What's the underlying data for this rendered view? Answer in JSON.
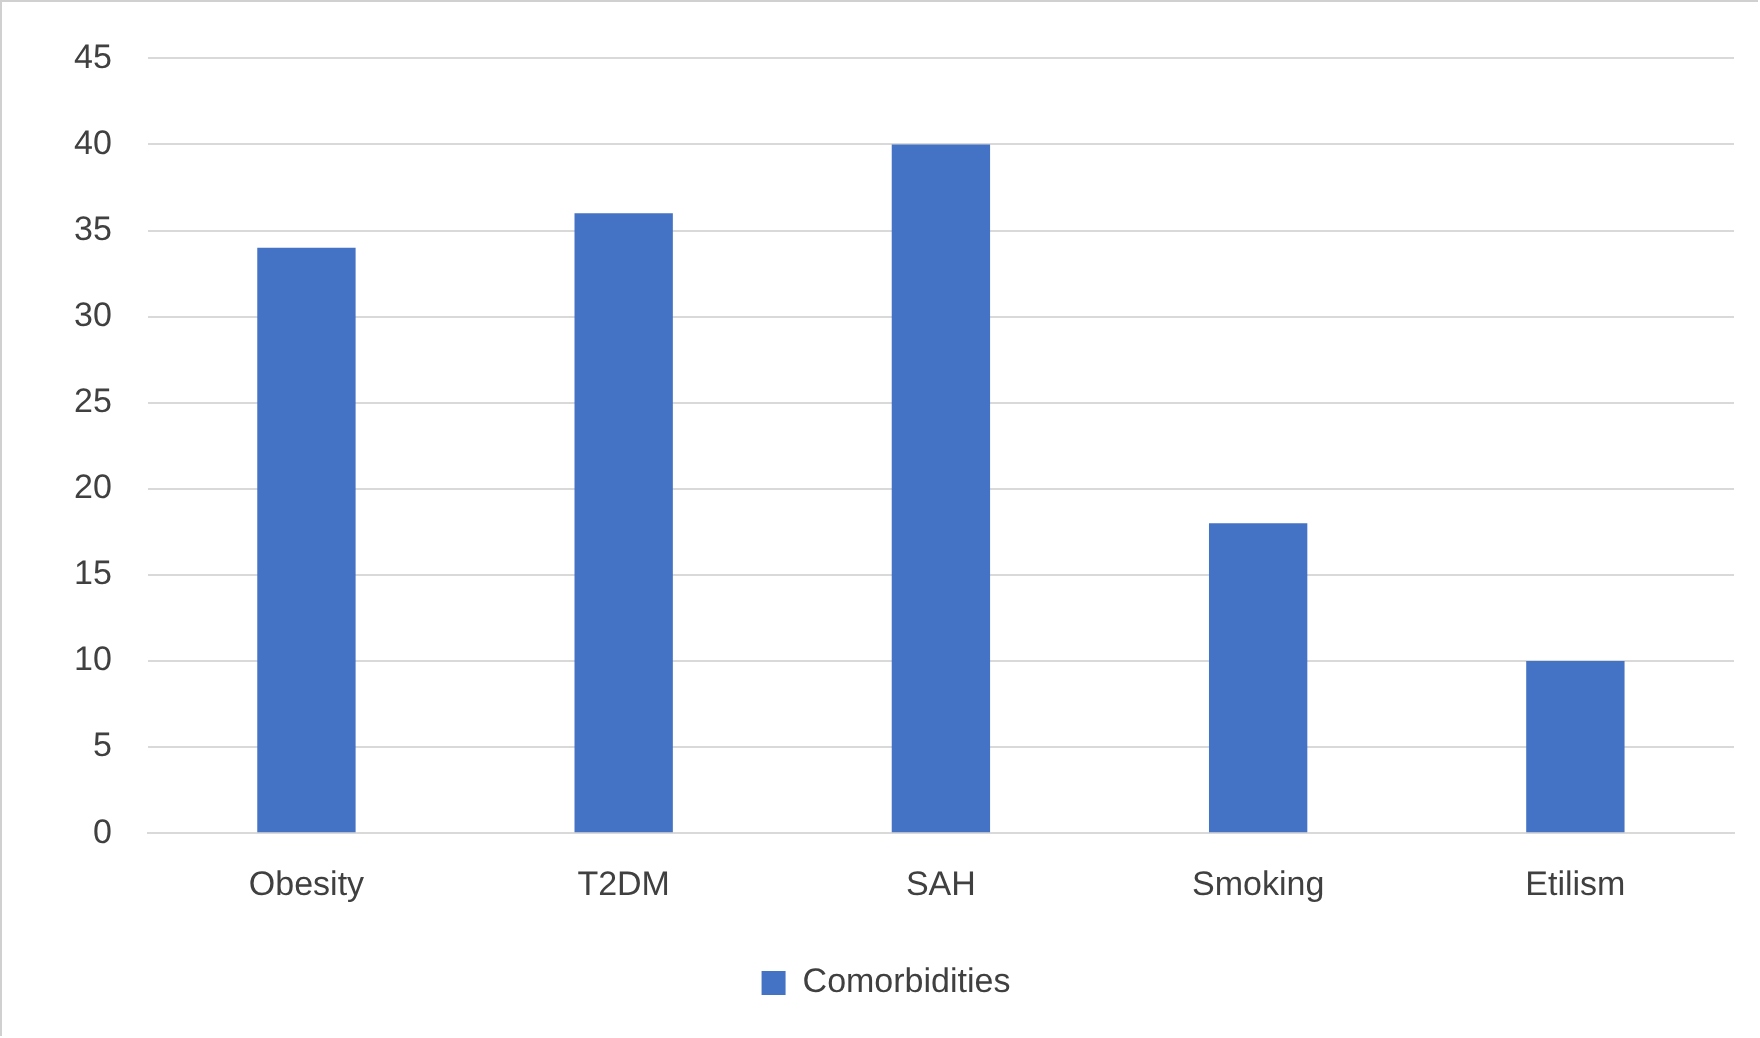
{
  "chart_data": {
    "type": "bar",
    "categories": [
      "Obesity",
      "T2DM",
      "SAH",
      "Smoking",
      "Etilism"
    ],
    "series": [
      {
        "name": "Comorbidities",
        "color": "#4472c4",
        "values": [
          34,
          36,
          40,
          18,
          10
        ]
      }
    ],
    "ylim": [
      0,
      45
    ],
    "yticks": [
      0,
      5,
      10,
      15,
      20,
      25,
      30,
      35,
      40,
      45
    ],
    "grid": "y",
    "legend": "bottom"
  }
}
